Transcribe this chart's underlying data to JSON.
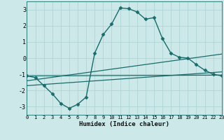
{
  "background_color": "#cce8e8",
  "grid_color": "#b0d4d4",
  "line_color": "#1a6b6b",
  "xlabel": "Humidex (Indice chaleur)",
  "xlim": [
    0,
    23
  ],
  "ylim": [
    -3.5,
    3.5
  ],
  "yticks": [
    -3,
    -2,
    -1,
    0,
    1,
    2,
    3
  ],
  "xticks": [
    0,
    1,
    2,
    3,
    4,
    5,
    6,
    7,
    8,
    9,
    10,
    11,
    12,
    13,
    14,
    15,
    16,
    17,
    18,
    19,
    20,
    21,
    22,
    23
  ],
  "series": [
    {
      "x": [
        0,
        1,
        2,
        3,
        4,
        5,
        6,
        7,
        8,
        9,
        10,
        11,
        12,
        13,
        14,
        15,
        16,
        17,
        18,
        19,
        20,
        21,
        22,
        23
      ],
      "y": [
        -1.1,
        -1.2,
        -1.7,
        -2.2,
        -2.8,
        -3.1,
        -2.85,
        -2.4,
        0.3,
        1.45,
        2.1,
        3.1,
        3.05,
        2.85,
        2.4,
        2.5,
        1.2,
        0.3,
        0.05,
        0.0,
        -0.4,
        -0.75,
        -1.0,
        -1.1
      ],
      "marker": "D",
      "markersize": 2.5,
      "linewidth": 1.0,
      "has_marker": true
    },
    {
      "x": [
        0,
        23
      ],
      "y": [
        -1.1,
        -1.05
      ],
      "marker": null,
      "linewidth": 0.9,
      "has_marker": false
    },
    {
      "x": [
        0,
        23
      ],
      "y": [
        -1.4,
        0.25
      ],
      "marker": null,
      "linewidth": 0.9,
      "has_marker": false
    },
    {
      "x": [
        0,
        23
      ],
      "y": [
        -1.7,
        -0.85
      ],
      "marker": null,
      "linewidth": 0.9,
      "has_marker": false
    }
  ]
}
